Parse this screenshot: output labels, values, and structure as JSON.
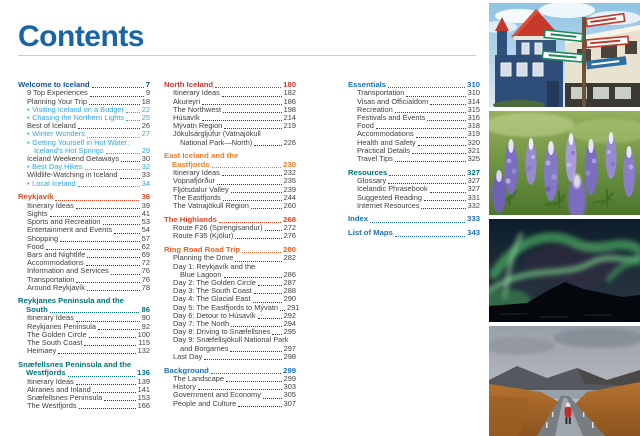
{
  "page_title": "Contents",
  "colors": {
    "title_blue": "#1765a6",
    "body_text": "#404040",
    "bullet_blue": "#35a8dc",
    "rule_gray": "#c9c9c9"
  },
  "toc": {
    "columns": [
      {
        "sections": [
          {
            "title_lines": [
              "Welcome to Iceland"
            ],
            "page": "7",
            "color": "#14568f",
            "items": [
              {
                "lines": [
                  "9 Top Experiences"
                ],
                "page": "9"
              },
              {
                "lines": [
                  "Planning Your Trip"
                ],
                "page": "18"
              },
              {
                "lines": [
                  "Visiting Iceland on a Budget"
                ],
                "page": "22",
                "bullet": true
              },
              {
                "lines": [
                  "Chasing the Northern Lights"
                ],
                "page": "25",
                "bullet": true
              },
              {
                "lines": [
                  "Best of Iceland"
                ],
                "page": "26"
              },
              {
                "lines": [
                  "Winter Wonders"
                ],
                "page": "27",
                "bullet": true
              },
              {
                "lines": [
                  "Getting Yourself in Hot Water:",
                  "Iceland's Hot Springs"
                ],
                "page": "29",
                "bullet": true
              },
              {
                "lines": [
                  "Iceland Weekend Getaways"
                ],
                "page": "30"
              },
              {
                "lines": [
                  "Best Day Hikes"
                ],
                "page": "32",
                "bullet": true
              },
              {
                "lines": [
                  "Wildlife-Watching in Iceland"
                ],
                "page": "33"
              },
              {
                "lines": [
                  "Local Iceland"
                ],
                "page": "34",
                "bullet": true
              }
            ]
          },
          {
            "title_lines": [
              "Reykjavík"
            ],
            "page": "36",
            "color": "#d84a28",
            "items": [
              {
                "lines": [
                  "Itinerary Ideas"
                ],
                "page": "39"
              },
              {
                "lines": [
                  "Sights"
                ],
                "page": "41"
              },
              {
                "lines": [
                  "Sports and Recreation"
                ],
                "page": "53"
              },
              {
                "lines": [
                  "Entertainment and Events"
                ],
                "page": "54"
              },
              {
                "lines": [
                  "Shopping"
                ],
                "page": "57"
              },
              {
                "lines": [
                  "Food"
                ],
                "page": "62"
              },
              {
                "lines": [
                  "Bars and Nightlife"
                ],
                "page": "69"
              },
              {
                "lines": [
                  "Accommodations"
                ],
                "page": "72"
              },
              {
                "lines": [
                  "Information and Services"
                ],
                "page": "76"
              },
              {
                "lines": [
                  "Transportation"
                ],
                "page": "76"
              },
              {
                "lines": [
                  "Around Reykjavík"
                ],
                "page": "78"
              }
            ]
          },
          {
            "title_lines": [
              "Reykjanes Peninsula and the",
              "South"
            ],
            "page": "86",
            "color": "#00737c",
            "items": [
              {
                "lines": [
                  "Itinerary Ideas"
                ],
                "page": "90"
              },
              {
                "lines": [
                  "Reykjanes Peninsula"
                ],
                "page": "92"
              },
              {
                "lines": [
                  "The Golden Circle"
                ],
                "page": "100"
              },
              {
                "lines": [
                  "The South Coast"
                ],
                "page": "115"
              },
              {
                "lines": [
                  "Heimaey"
                ],
                "page": "132"
              }
            ]
          },
          {
            "title_lines": [
              "Snæfellsnes Peninsula and the",
              "Westfjords"
            ],
            "page": "136",
            "color": "#00737c",
            "items": [
              {
                "lines": [
                  "Itinerary Ideas"
                ],
                "page": "139"
              },
              {
                "lines": [
                  "Akranes and Inland"
                ],
                "page": "141"
              },
              {
                "lines": [
                  "Snæfellsnes Peninsula"
                ],
                "page": "153"
              },
              {
                "lines": [
                  "The Westfjords"
                ],
                "page": "166"
              }
            ]
          }
        ]
      },
      {
        "sections": [
          {
            "title_lines": [
              "North Iceland"
            ],
            "page": "180",
            "color": "#c03c31",
            "items": [
              {
                "lines": [
                  "Itinerary Ideas"
                ],
                "page": "182"
              },
              {
                "lines": [
                  "Akureyri"
                ],
                "page": "186"
              },
              {
                "lines": [
                  "The Northwest"
                ],
                "page": "198"
              },
              {
                "lines": [
                  "Húsavík"
                ],
                "page": "214"
              },
              {
                "lines": [
                  "Mývatn Region"
                ],
                "page": "219"
              },
              {
                "lines": [
                  "Jökulsárgljúfur (Vatnajökull",
                  "National Park—North)"
                ],
                "page": "226"
              }
            ]
          },
          {
            "title_lines": [
              "East Iceland and the",
              "Eastfjords"
            ],
            "page": "230",
            "color": "#ef7d24",
            "items": [
              {
                "lines": [
                  "Itinerary Ideas"
                ],
                "page": "232"
              },
              {
                "lines": [
                  "Vopnafjörður"
                ],
                "page": "235"
              },
              {
                "lines": [
                  "Fljótsdalur Valley"
                ],
                "page": "239"
              },
              {
                "lines": [
                  "The Eastfjords"
                ],
                "page": "244"
              },
              {
                "lines": [
                  "The Vatnajökull Region"
                ],
                "page": "260"
              }
            ]
          },
          {
            "title_lines": [
              "The Highlands"
            ],
            "page": "268",
            "color": "#d84a28",
            "items": [
              {
                "lines": [
                  "Route F26 (Sprengisandur)"
                ],
                "page": "272"
              },
              {
                "lines": [
                  "Route F35 (Kjölur)"
                ],
                "page": "276"
              }
            ]
          },
          {
            "title_lines": [
              "Ring Road Road Trip"
            ],
            "page": "280",
            "color": "#e8632a",
            "items": [
              {
                "lines": [
                  "Planning the Drive"
                ],
                "page": "282"
              },
              {
                "lines": [
                  "Day 1: Reykjavík and the",
                  "Blue Lagoon"
                ],
                "page": "286"
              },
              {
                "lines": [
                  "Day 2: The Golden Circle"
                ],
                "page": "287"
              },
              {
                "lines": [
                  "Day 3: The South Coast"
                ],
                "page": "288"
              },
              {
                "lines": [
                  "Day 4: The Glacial East"
                ],
                "page": "290"
              },
              {
                "lines": [
                  "Day 5: The Eastfjords to Mývatn"
                ],
                "page": "291"
              },
              {
                "lines": [
                  "Day 6: Detour to Húsavík"
                ],
                "page": "292"
              },
              {
                "lines": [
                  "Day 7: The North"
                ],
                "page": "294"
              },
              {
                "lines": [
                  "Day 8: Driving to Snæfellsnes"
                ],
                "page": "295"
              },
              {
                "lines": [
                  "Day 9: Snæfellsjökull National Park",
                  "and Borgarnes"
                ],
                "page": "297"
              },
              {
                "lines": [
                  "Last Day"
                ],
                "page": "298"
              }
            ]
          },
          {
            "title_lines": [
              "Background"
            ],
            "page": "299",
            "color": "#1a71b8",
            "items": [
              {
                "lines": [
                  "The Landscape"
                ],
                "page": "299"
              },
              {
                "lines": [
                  "History"
                ],
                "page": "303"
              },
              {
                "lines": [
                  "Government and Economy"
                ],
                "page": "305"
              },
              {
                "lines": [
                  "People and Culture"
                ],
                "page": "307"
              }
            ]
          }
        ]
      },
      {
        "sections": [
          {
            "title_lines": [
              "Essentials"
            ],
            "page": "310",
            "color": "#1a71b8",
            "items": [
              {
                "lines": [
                  "Transportation"
                ],
                "page": "310"
              },
              {
                "lines": [
                  "Visas and Officialdom"
                ],
                "page": "314"
              },
              {
                "lines": [
                  "Recreation"
                ],
                "page": "315"
              },
              {
                "lines": [
                  "Festivals and Events"
                ],
                "page": "316"
              },
              {
                "lines": [
                  "Food"
                ],
                "page": "318"
              },
              {
                "lines": [
                  "Accommodations"
                ],
                "page": "319"
              },
              {
                "lines": [
                  "Health and Safety"
                ],
                "page": "320"
              },
              {
                "lines": [
                  "Practical Details"
                ],
                "page": "321"
              },
              {
                "lines": [
                  "Travel Tips"
                ],
                "page": "325"
              }
            ]
          },
          {
            "title_lines": [
              "Resources"
            ],
            "page": "327",
            "color": "#00737c",
            "items": [
              {
                "lines": [
                  "Glossary"
                ],
                "page": "327"
              },
              {
                "lines": [
                  "Icelandic Phrasebook"
                ],
                "page": "327"
              },
              {
                "lines": [
                  "Suggested Reading"
                ],
                "page": "331"
              },
              {
                "lines": [
                  "Internet Resources"
                ],
                "page": "332"
              }
            ]
          },
          {
            "title_lines": [
              "Index"
            ],
            "page": "333",
            "color": "#1a71b8",
            "items": []
          },
          {
            "title_lines": [
              "List of Maps"
            ],
            "page": "343",
            "color": "#1a71b8",
            "items": []
          }
        ]
      }
    ]
  },
  "photos": [
    {
      "alt": "Colorful buildings and directional signpost in Akureyri"
    },
    {
      "alt": "Purple lupine flowers in bloom"
    },
    {
      "alt": "Green northern lights over dark mountains"
    },
    {
      "alt": "Traveler in red jacket walking a wet road between orange hills"
    }
  ]
}
